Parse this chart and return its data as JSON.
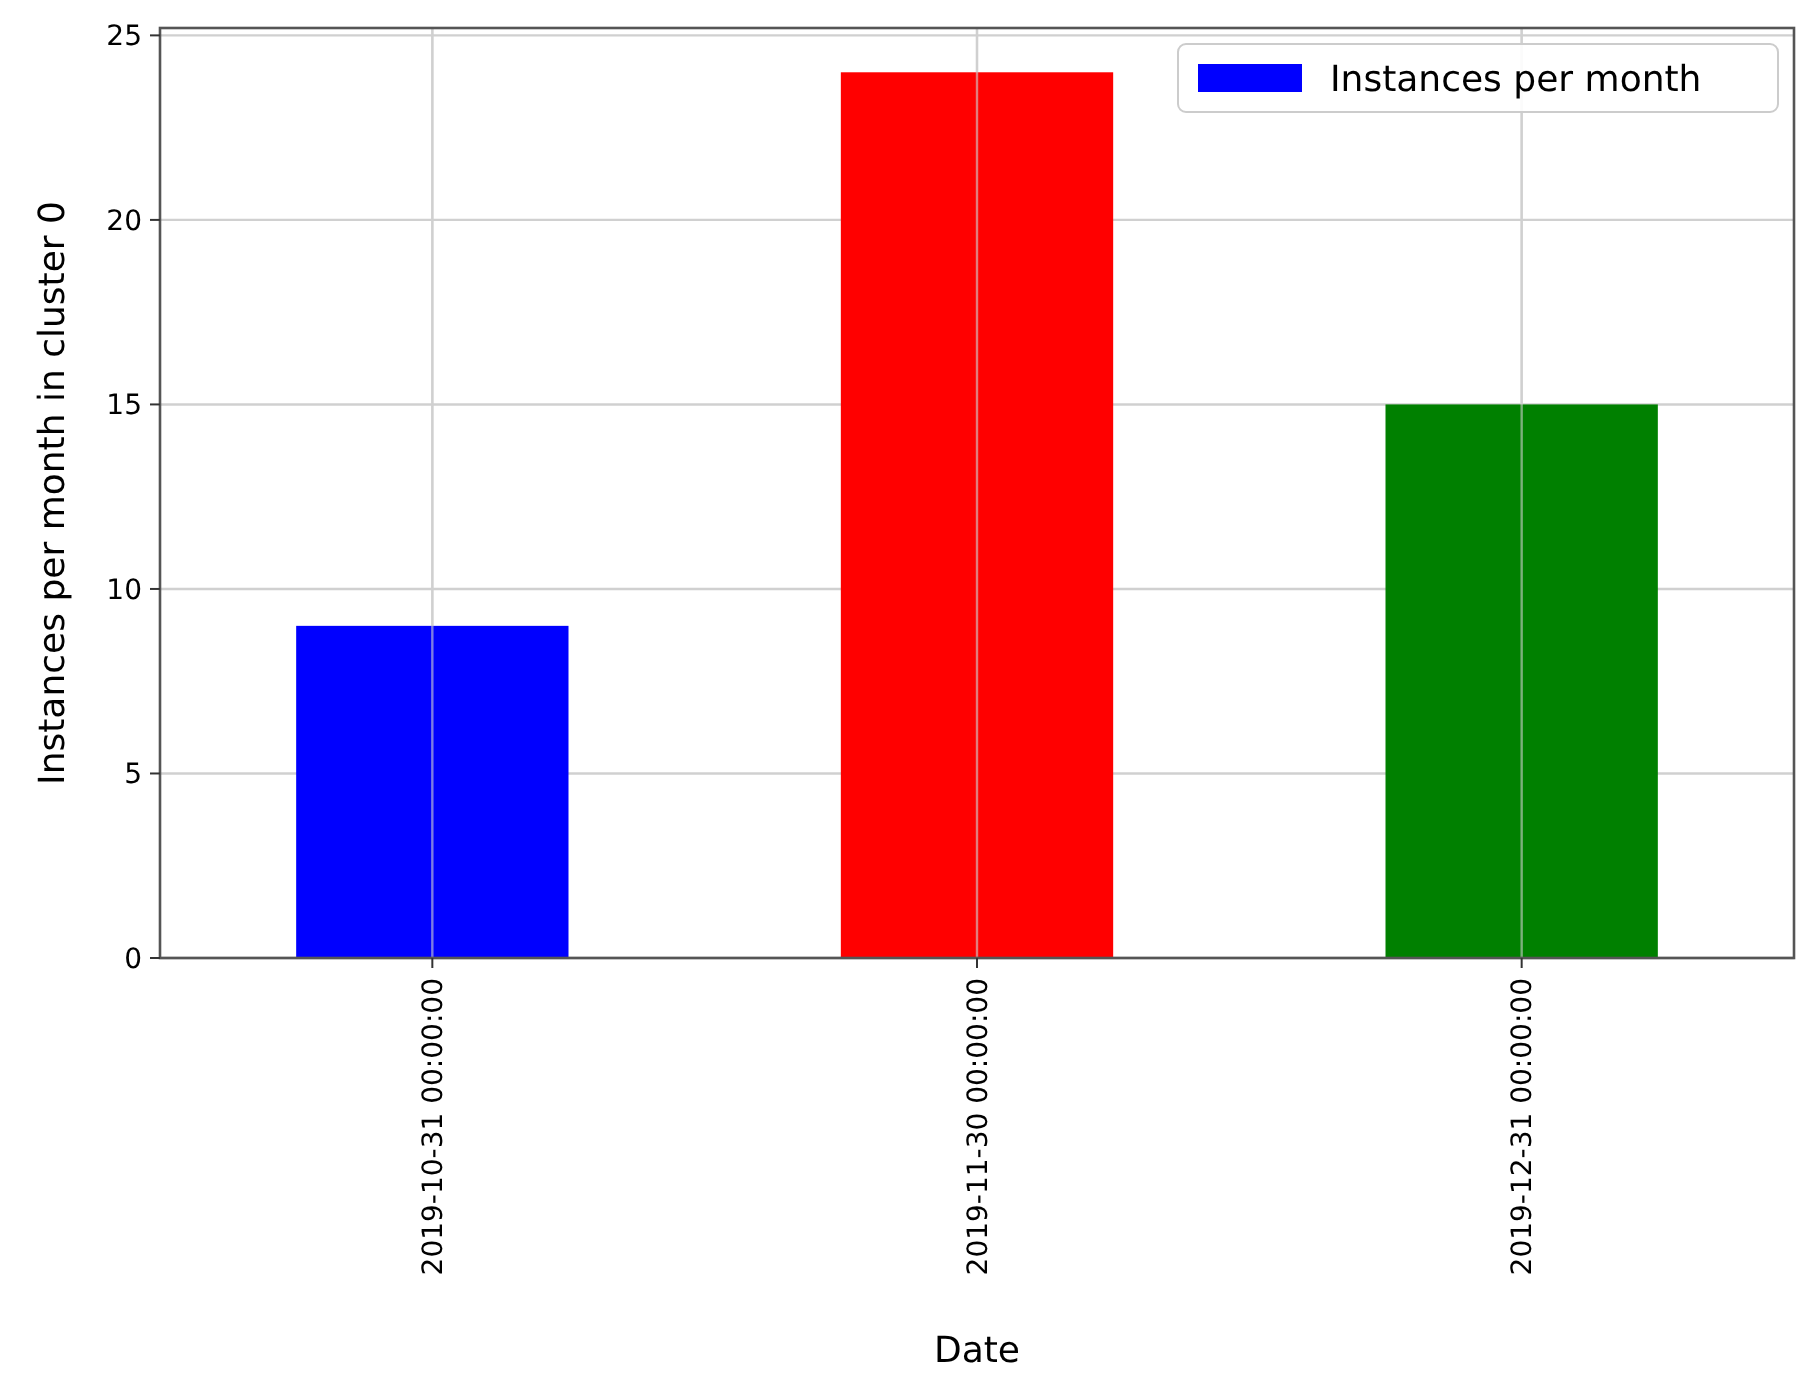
{
  "chart_data": {
    "type": "bar",
    "xlabel": "Date",
    "ylabel": "Instances per month in cluster 0",
    "categories": [
      "2019-10-31 00:00:00",
      "2019-11-30 00:00:00",
      "2019-12-31 00:00:00"
    ],
    "series": [
      {
        "name": "Instances per month",
        "color": "#0000ff",
        "colors": [
          "#0000ff",
          "#ff0000",
          "#008000"
        ],
        "values": [
          9,
          24,
          15
        ]
      }
    ],
    "ylim": [
      0,
      25.2
    ],
    "yticks": [
      0,
      5,
      10,
      15,
      20,
      25
    ],
    "grid": true,
    "legend": "top right"
  }
}
